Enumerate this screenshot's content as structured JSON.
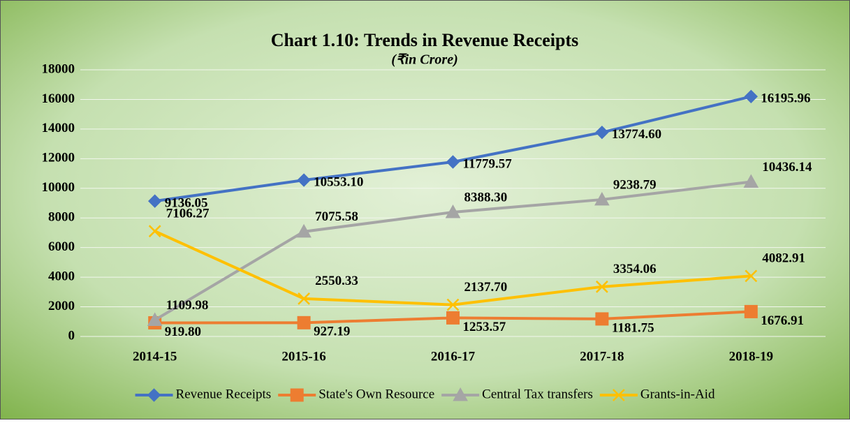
{
  "chart_data": {
    "type": "line",
    "title": "Chart 1.10: Trends in Revenue Receipts",
    "subtitle": "(₹in Crore)",
    "categories": [
      "2014-15",
      "2015-16",
      "2016-17",
      "2017-18",
      "2018-19"
    ],
    "series": [
      {
        "name": "Revenue Receipts",
        "color": "#4472c4",
        "marker": "diamond",
        "values": [
          9136.05,
          10553.1,
          11779.57,
          13774.6,
          16195.96
        ],
        "value_labels": [
          "9136.05",
          "10553.10",
          "11779.57",
          "13774.60",
          "16195.96"
        ]
      },
      {
        "name": "State's Own Resource",
        "color": "#ed7d31",
        "marker": "square",
        "values": [
          919.8,
          927.19,
          1253.57,
          1181.75,
          1676.91
        ],
        "value_labels": [
          "919.80",
          "927.19",
          "1253.57",
          "1181.75",
          "1676.91"
        ]
      },
      {
        "name": "Central Tax transfers",
        "color": "#a5a5a5",
        "marker": "triangle",
        "values": [
          1109.98,
          7075.58,
          8388.3,
          9238.79,
          10436.14
        ],
        "value_labels": [
          "1109.98",
          "7075.58",
          "8388.30",
          "9238.79",
          "10436.14"
        ]
      },
      {
        "name": "Grants-in-Aid",
        "color": "#ffc000",
        "marker": "x",
        "values": [
          7106.27,
          2550.33,
          2137.7,
          3354.06,
          4082.91
        ],
        "value_labels": [
          "7106.27",
          "2550.33",
          "2137.70",
          "3354.06",
          "4082.91"
        ]
      }
    ],
    "ylim": [
      0,
      18000
    ],
    "yticks": [
      0,
      2000,
      4000,
      6000,
      8000,
      10000,
      12000,
      14000,
      16000,
      18000
    ],
    "grid": true,
    "legend": "bottom"
  }
}
